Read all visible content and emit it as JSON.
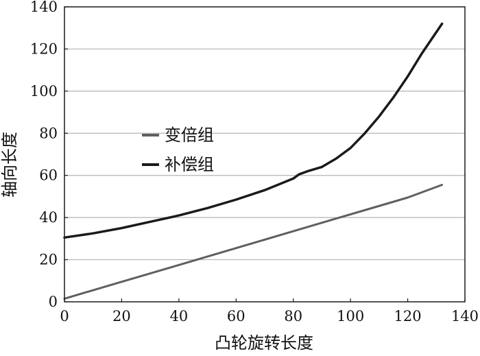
{
  "chart_data": {
    "type": "line",
    "title": "",
    "xlabel": "凸轮旋转长度",
    "ylabel": "轴向长度",
    "xlim": [
      0,
      140
    ],
    "ylim": [
      0,
      140
    ],
    "xticks": [
      0,
      20,
      40,
      60,
      80,
      100,
      120,
      140
    ],
    "yticks": [
      0,
      20,
      40,
      60,
      80,
      100,
      120,
      140
    ],
    "grid": "horizontal",
    "legend_position": "center-left",
    "series": [
      {
        "name": "变倍组",
        "color": "#5f5f5f",
        "x": [
          0,
          20,
          40,
          60,
          80,
          100,
          120,
          132
        ],
        "y": [
          1.5,
          9.5,
          17.5,
          25.5,
          33.5,
          41.5,
          49.5,
          55.5
        ]
      },
      {
        "name": "补偿组",
        "color": "#1a1a1a",
        "x": [
          0,
          10,
          20,
          30,
          40,
          50,
          60,
          70,
          80,
          82,
          85,
          90,
          95,
          100,
          105,
          110,
          115,
          120,
          125,
          130,
          132
        ],
        "y": [
          30.5,
          32.5,
          35,
          38,
          41,
          44.5,
          48.5,
          53,
          58.5,
          60.5,
          62,
          64,
          68,
          73,
          80,
          88,
          97,
          107,
          118,
          128,
          132
        ]
      }
    ]
  }
}
